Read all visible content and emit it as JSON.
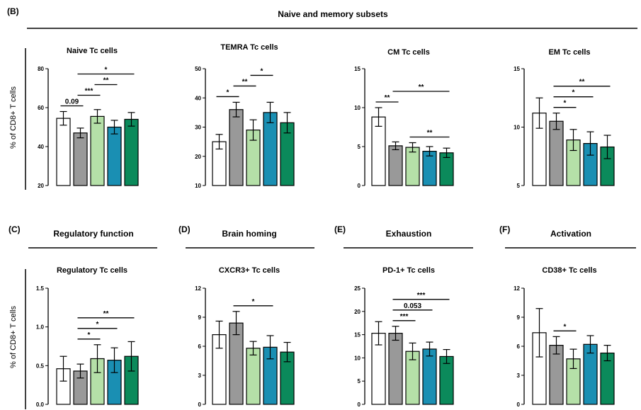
{
  "figure": {
    "ylabel": "% of CD8+ T  cells",
    "colors": [
      "#ffffff",
      "#999999",
      "#b5e0a8",
      "#1a8fb3",
      "#0b8a5b"
    ],
    "panels": [
      {
        "label": "(B)",
        "title": "Naive and memory subsets"
      },
      {
        "label": "(C)",
        "title": "Regulatory function"
      },
      {
        "label": "(D)",
        "title": "Brain homing"
      },
      {
        "label": "(E)",
        "title": "Exhaustion"
      },
      {
        "label": "(F)",
        "title": "Activation"
      }
    ]
  },
  "chart_data": [
    {
      "type": "bar",
      "title": "Naive Tc cells",
      "ylabel": "% of CD8+ T  cells",
      "ylim": [
        20,
        80
      ],
      "yticks": [
        20,
        40,
        60,
        80
      ],
      "values": [
        54.5,
        47,
        55.5,
        50,
        54
      ],
      "errors": [
        3.5,
        2.5,
        3.5,
        3.5,
        3.5
      ],
      "annotations": [
        {
          "from": 0,
          "to": 1,
          "text": "0.09"
        },
        {
          "from": 1,
          "to": 2,
          "text": "***"
        },
        {
          "from": 2,
          "to": 3,
          "text": "**"
        },
        {
          "from": 1,
          "to": 4,
          "text": "*"
        }
      ]
    },
    {
      "type": "bar",
      "title": "TEMRA Tc cells",
      "ylim": [
        10,
        50
      ],
      "yticks": [
        10,
        20,
        30,
        40,
        50
      ],
      "values": [
        25,
        36,
        29,
        35,
        31.5
      ],
      "errors": [
        2.5,
        2.5,
        3.5,
        3.5,
        3.5
      ],
      "annotations": [
        {
          "from": 0,
          "to": 1,
          "text": "*"
        },
        {
          "from": 1,
          "to": 2,
          "text": "**"
        },
        {
          "from": 2,
          "to": 3,
          "text": "*"
        }
      ]
    },
    {
      "type": "bar",
      "title": "CM Tc cells",
      "ylim": [
        0,
        15
      ],
      "yticks": [
        0,
        5,
        10,
        15
      ],
      "values": [
        8.8,
        5.1,
        4.9,
        4.4,
        4.2
      ],
      "errors": [
        1.2,
        0.5,
        0.6,
        0.6,
        0.6
      ],
      "annotations": [
        {
          "from": 0,
          "to": 1,
          "text": "**"
        },
        {
          "from": 1,
          "to": 4,
          "text": "**"
        },
        {
          "from": 2,
          "to": 4,
          "text": "**"
        }
      ]
    },
    {
      "type": "bar",
      "title": "EM Tc cells",
      "ylim": [
        5,
        15
      ],
      "yticks": [
        5,
        10,
        15
      ],
      "values": [
        11.2,
        10.5,
        8.9,
        8.6,
        8.3
      ],
      "errors": [
        1.3,
        0.7,
        0.9,
        1.0,
        1.0
      ],
      "annotations": [
        {
          "from": 1,
          "to": 2,
          "text": "*"
        },
        {
          "from": 1,
          "to": 3,
          "text": "*"
        },
        {
          "from": 1,
          "to": 4,
          "text": "**"
        }
      ]
    },
    {
      "type": "bar",
      "title": "Regulatory Tc cells",
      "ylabel": "% of CD8+ T  cells",
      "ylim": [
        0,
        1.5
      ],
      "yticks": [
        "0.0",
        "0.5",
        "1.0",
        "1.5"
      ],
      "values": [
        0.46,
        0.43,
        0.59,
        0.57,
        0.62
      ],
      "errors": [
        0.16,
        0.09,
        0.18,
        0.16,
        0.19
      ],
      "annotations": [
        {
          "from": 1,
          "to": 2,
          "text": "*"
        },
        {
          "from": 1,
          "to": 3,
          "text": "*"
        },
        {
          "from": 1,
          "to": 4,
          "text": "**"
        }
      ]
    },
    {
      "type": "bar",
      "title": "CXCR3+ Tc cells",
      "ylim": [
        0,
        12
      ],
      "yticks": [
        0,
        3,
        6,
        9,
        12
      ],
      "values": [
        7.2,
        8.4,
        5.8,
        5.9,
        5.4
      ],
      "errors": [
        1.4,
        1.2,
        0.7,
        1.2,
        1.0
      ],
      "annotations": [
        {
          "from": 1,
          "to": 3,
          "text": "*"
        }
      ]
    },
    {
      "type": "bar",
      "title": "PD-1+ Tc cells",
      "ylim": [
        0,
        25
      ],
      "yticks": [
        0,
        5,
        10,
        15,
        20,
        25
      ],
      "values": [
        15.3,
        15.3,
        11.4,
        11.9,
        10.3
      ],
      "errors": [
        2.5,
        1.5,
        1.8,
        1.5,
        1.5
      ],
      "annotations": [
        {
          "from": 1,
          "to": 2,
          "text": "***"
        },
        {
          "from": 1,
          "to": 3,
          "text": "0.053"
        },
        {
          "from": 1,
          "to": 4,
          "text": "***"
        }
      ]
    },
    {
      "type": "bar",
      "title": "CD38+ Tc cells",
      "ylim": [
        0,
        12
      ],
      "yticks": [
        0,
        3,
        6,
        9,
        12
      ],
      "values": [
        7.4,
        6.1,
        4.7,
        6.2,
        5.3
      ],
      "errors": [
        2.5,
        0.9,
        1.0,
        0.9,
        0.8
      ],
      "annotations": [
        {
          "from": 1,
          "to": 2,
          "text": "*"
        }
      ]
    }
  ]
}
